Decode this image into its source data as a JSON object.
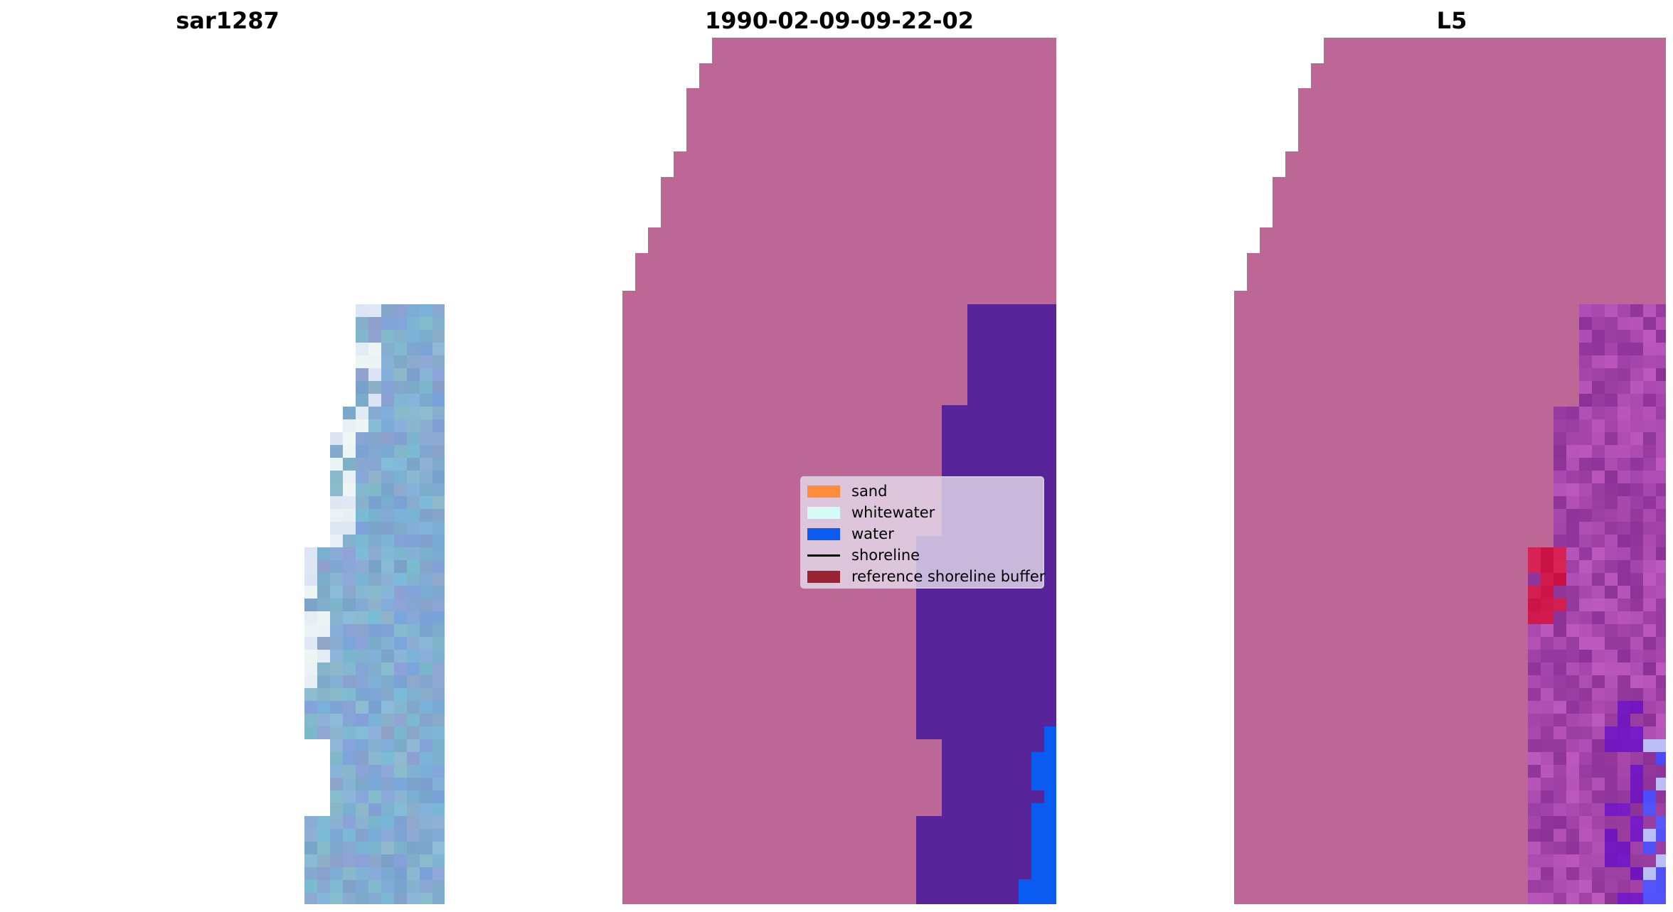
{
  "panels": [
    {
      "title": "sar1287"
    },
    {
      "title": "1990-02-09-09-22-02"
    },
    {
      "title": "L5"
    }
  ],
  "legend": {
    "items": [
      {
        "label": "sand",
        "kind": "patch",
        "color": "#ff8c3c"
      },
      {
        "label": "whitewater",
        "kind": "patch",
        "color": "#d4fbf6"
      },
      {
        "label": "water",
        "kind": "patch",
        "color": "#0a5cf0"
      },
      {
        "label": "shoreline",
        "kind": "line",
        "color": "#000000"
      },
      {
        "label": "reference shoreline buffer",
        "kind": "patch",
        "color": "#9b2230"
      }
    ]
  },
  "colors": {
    "land_mask": "#bc6795",
    "classified_water_overlay": "#57249a",
    "water_class": "#0a5cf0",
    "sar_tile": "#8aa9d3"
  }
}
